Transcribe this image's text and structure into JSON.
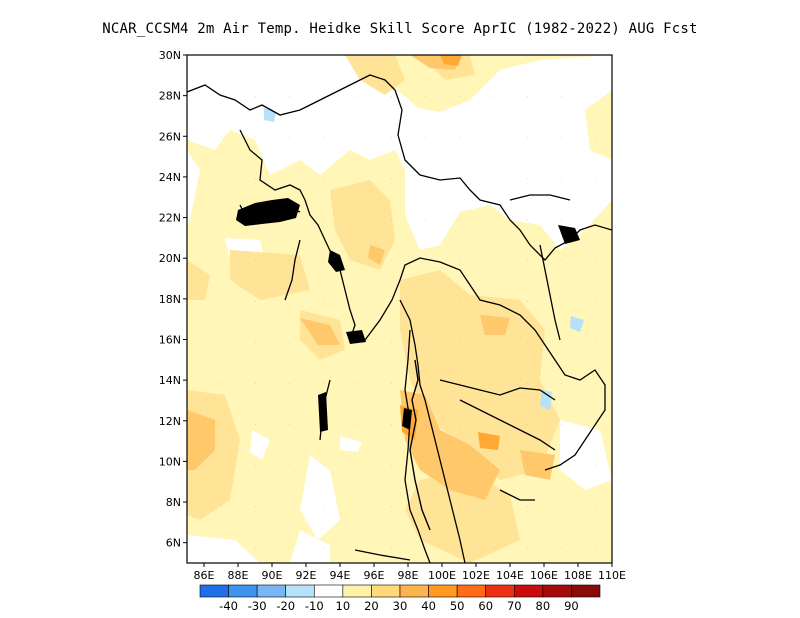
{
  "title": "NCAR_CCSM4  2m Air Temp. Heidke Skill Score AprIC (1982-2022) AUG Fcst",
  "map": {
    "lon_range": [
      85,
      110
    ],
    "lat_range": [
      5,
      30
    ],
    "x_ticks": [
      "86E",
      "88E",
      "90E",
      "92E",
      "94E",
      "96E",
      "98E",
      "100E",
      "102E",
      "104E",
      "106E",
      "108E",
      "110E"
    ],
    "y_ticks": [
      "30N",
      "28N",
      "26N",
      "24N",
      "22N",
      "20N",
      "18N",
      "16N",
      "14N",
      "12N",
      "10N",
      "8N",
      "6N"
    ],
    "background_class": "10-20",
    "regions": [
      {
        "class": "20-30",
        "area": "Bay of Bengal west (around 85-88E, 9-13N)"
      },
      {
        "class": "20-30",
        "area": "Myanmar / Thailand / Cambodia interior"
      },
      {
        "class": "30-40",
        "area": "Gulf of Thailand and Thai peninsula (around 98-104E, 8-12N)"
      },
      {
        "class": "40-50",
        "area": "Eastern Thailand near 102E, 11N"
      },
      {
        "class": "below 10",
        "area": "Himalaya / northern Myanmar / Yunnan (white areas)"
      },
      {
        "class": "-10 to -20",
        "area": "Small patches near 90E 27N, 108E 17N, 105E 13N"
      }
    ]
  },
  "colorbar": {
    "labels": [
      "-40",
      "-30",
      "-20",
      "-10",
      "10",
      "20",
      "30",
      "40",
      "50",
      "60",
      "70",
      "80",
      "90"
    ],
    "colors": [
      "#1f6fe8",
      "#3f93ef",
      "#78b6f3",
      "#b5e2fa",
      "#ffffff",
      "#fff2a8",
      "#ffd97a",
      "#ffb34f",
      "#ff9a1f",
      "#ff6b17",
      "#ee3012",
      "#cc0c0c",
      "#a50b0b",
      "#8a0a0a"
    ]
  }
}
